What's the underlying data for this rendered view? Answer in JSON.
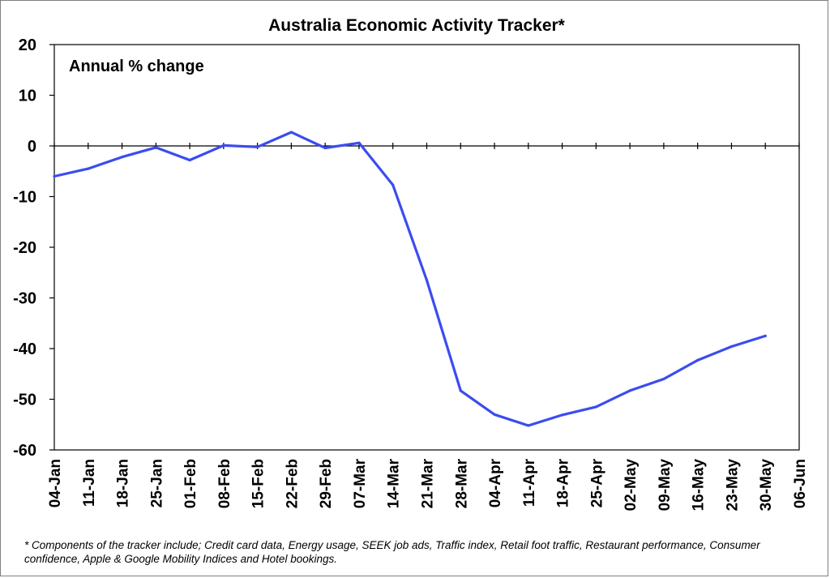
{
  "chart_data": {
    "type": "line",
    "title": "Australia Economic Activity Tracker*",
    "ylabel": "Annual % change",
    "xlabel": "",
    "ylim": [
      -60,
      20
    ],
    "yticks": [
      20,
      10,
      0,
      -10,
      -20,
      -30,
      -40,
      -50,
      -60
    ],
    "categories": [
      "04-Jan",
      "11-Jan",
      "18-Jan",
      "25-Jan",
      "01-Feb",
      "08-Feb",
      "15-Feb",
      "22-Feb",
      "29-Feb",
      "07-Mar",
      "14-Mar",
      "21-Mar",
      "28-Mar",
      "04-Apr",
      "11-Apr",
      "18-Apr",
      "25-Apr",
      "02-May",
      "09-May",
      "16-May",
      "23-May",
      "30-May",
      "06-Jun"
    ],
    "series": [
      {
        "color": "#3b4cf0",
        "values": [
          -6.0,
          -4.5,
          -2.2,
          -0.3,
          -2.8,
          0.1,
          -0.2,
          2.7,
          -0.4,
          0.6,
          -7.7,
          -26.5,
          -48.3,
          -53.0,
          -55.2,
          -53.1,
          -51.5,
          -48.3,
          -46.0,
          -42.3,
          -39.6,
          -37.5,
          null
        ]
      }
    ],
    "grid": false,
    "legend": "none"
  },
  "footnote": "* Components of the tracker include; Credit card data, Energy usage, SEEK job ads, Traffic index, Retail foot traffic, Restaurant performance, Consumer confidence, Apple & Google Mobility Indices and Hotel bookings."
}
